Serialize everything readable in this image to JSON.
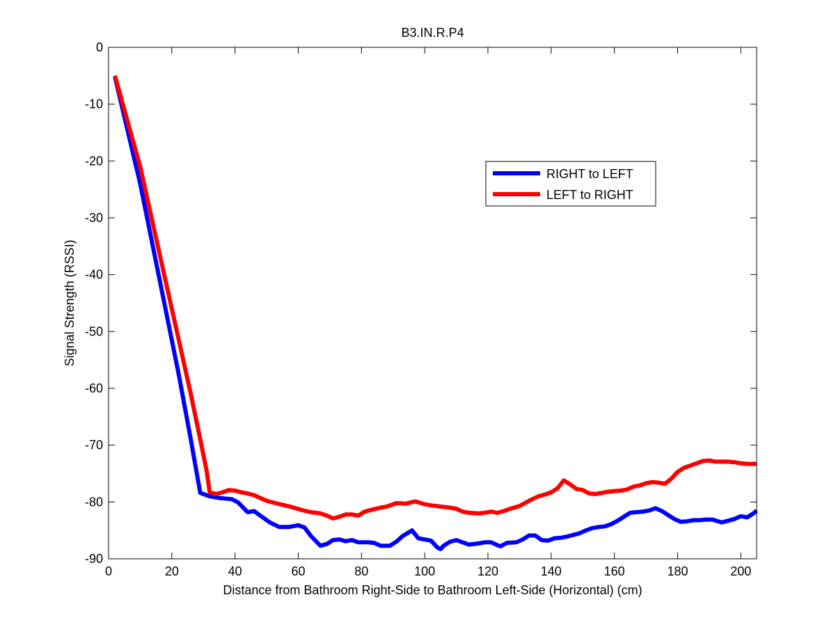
{
  "chart_data": {
    "type": "line",
    "title": "B3.IN.R.P4",
    "xlabel": "Distance from Bathroom Right-Side to Bathroom Left-Side  (Horizontal)  (cm)",
    "ylabel": "Signal Strength (RSSI)",
    "xlim": [
      0,
      205
    ],
    "ylim": [
      -90,
      0
    ],
    "xticks": [
      0,
      20,
      40,
      60,
      80,
      100,
      120,
      140,
      160,
      180,
      200
    ],
    "yticks": [
      0,
      -10,
      -20,
      -30,
      -40,
      -50,
      -60,
      -70,
      -80,
      -90
    ],
    "grid": false,
    "legend_position": "upper-right",
    "series": [
      {
        "name": "RIGHT to LEFT",
        "color": "#0000ff",
        "points": [
          [
            2,
            -5.2
          ],
          [
            10,
            -24
          ],
          [
            18,
            -46
          ],
          [
            22,
            -57
          ],
          [
            26,
            -69
          ],
          [
            29,
            -78.4
          ],
          [
            32,
            -79
          ],
          [
            35,
            -79.3
          ],
          [
            39,
            -79.5
          ],
          [
            41,
            -80.1
          ],
          [
            44,
            -81.8
          ],
          [
            46,
            -81.6
          ],
          [
            49,
            -82.8
          ],
          [
            51,
            -83.6
          ],
          [
            54,
            -84.4
          ],
          [
            57,
            -84.4
          ],
          [
            60,
            -84.1
          ],
          [
            62,
            -84.5
          ],
          [
            64,
            -86
          ],
          [
            67,
            -87.7
          ],
          [
            69,
            -87.4
          ],
          [
            71,
            -86.7
          ],
          [
            73,
            -86.6
          ],
          [
            75,
            -86.9
          ],
          [
            77,
            -86.7
          ],
          [
            79,
            -87.1
          ],
          [
            82,
            -87.1
          ],
          [
            84,
            -87.2
          ],
          [
            86,
            -87.7
          ],
          [
            89,
            -87.7
          ],
          [
            91,
            -87
          ],
          [
            93,
            -86
          ],
          [
            96,
            -85
          ],
          [
            98,
            -86.4
          ],
          [
            100,
            -86.6
          ],
          [
            102,
            -86.8
          ],
          [
            104,
            -88
          ],
          [
            105,
            -88.3
          ],
          [
            106,
            -87.7
          ],
          [
            108,
            -87
          ],
          [
            110,
            -86.7
          ],
          [
            112,
            -87.1
          ],
          [
            114,
            -87.5
          ],
          [
            117,
            -87.3
          ],
          [
            119,
            -87.1
          ],
          [
            121,
            -87.1
          ],
          [
            123,
            -87.6
          ],
          [
            124,
            -87.8
          ],
          [
            126,
            -87.2
          ],
          [
            129,
            -87.1
          ],
          [
            131,
            -86.6
          ],
          [
            133,
            -85.9
          ],
          [
            135,
            -85.9
          ],
          [
            137,
            -86.7
          ],
          [
            139,
            -86.8
          ],
          [
            141,
            -86.4
          ],
          [
            143,
            -86.3
          ],
          [
            145,
            -86.1
          ],
          [
            147,
            -85.8
          ],
          [
            149,
            -85.5
          ],
          [
            151,
            -85
          ],
          [
            153,
            -84.6
          ],
          [
            155,
            -84.4
          ],
          [
            157,
            -84.3
          ],
          [
            159,
            -83.9
          ],
          [
            161,
            -83.3
          ],
          [
            163,
            -82.6
          ],
          [
            165,
            -81.9
          ],
          [
            167,
            -81.8
          ],
          [
            169,
            -81.7
          ],
          [
            171,
            -81.5
          ],
          [
            173,
            -81.1
          ],
          [
            175,
            -81.6
          ],
          [
            177,
            -82.3
          ],
          [
            179,
            -83
          ],
          [
            181,
            -83.5
          ],
          [
            183,
            -83.4
          ],
          [
            185,
            -83.2
          ],
          [
            187,
            -83.2
          ],
          [
            189,
            -83.1
          ],
          [
            191,
            -83.1
          ],
          [
            194,
            -83.6
          ],
          [
            196,
            -83.3
          ],
          [
            198,
            -83
          ],
          [
            200,
            -82.5
          ],
          [
            202,
            -82.7
          ],
          [
            204,
            -82
          ],
          [
            205,
            -81.5
          ]
        ]
      },
      {
        "name": "LEFT to RIGHT",
        "color": "#ff0000",
        "points": [
          [
            2,
            -5
          ],
          [
            10,
            -21
          ],
          [
            18,
            -41
          ],
          [
            22,
            -51
          ],
          [
            26,
            -61
          ],
          [
            29,
            -69
          ],
          [
            31,
            -74.5
          ],
          [
            32,
            -78.3
          ],
          [
            34,
            -78.6
          ],
          [
            36,
            -78.3
          ],
          [
            38,
            -77.9
          ],
          [
            40,
            -78
          ],
          [
            42,
            -78.3
          ],
          [
            44,
            -78.5
          ],
          [
            46,
            -78.8
          ],
          [
            48,
            -79.3
          ],
          [
            50,
            -79.8
          ],
          [
            52,
            -80.1
          ],
          [
            55,
            -80.5
          ],
          [
            58,
            -80.9
          ],
          [
            61,
            -81.4
          ],
          [
            64,
            -81.8
          ],
          [
            67,
            -82
          ],
          [
            69,
            -82.4
          ],
          [
            71,
            -82.9
          ],
          [
            73,
            -82.6
          ],
          [
            75,
            -82.2
          ],
          [
            77,
            -82.2
          ],
          [
            79,
            -82.4
          ],
          [
            81,
            -81.7
          ],
          [
            83,
            -81.4
          ],
          [
            86,
            -81
          ],
          [
            88,
            -80.8
          ],
          [
            91,
            -80.2
          ],
          [
            94,
            -80.3
          ],
          [
            97,
            -79.9
          ],
          [
            100,
            -80.4
          ],
          [
            102,
            -80.6
          ],
          [
            105,
            -80.8
          ],
          [
            108,
            -81
          ],
          [
            110,
            -81.2
          ],
          [
            112,
            -81.7
          ],
          [
            114,
            -81.9
          ],
          [
            117,
            -82
          ],
          [
            119,
            -81.9
          ],
          [
            121,
            -81.7
          ],
          [
            123,
            -81.9
          ],
          [
            125,
            -81.6
          ],
          [
            127,
            -81.2
          ],
          [
            130,
            -80.7
          ],
          [
            132,
            -80.1
          ],
          [
            134,
            -79.5
          ],
          [
            136,
            -79
          ],
          [
            138,
            -78.7
          ],
          [
            140,
            -78.3
          ],
          [
            142,
            -77.6
          ],
          [
            144,
            -76.2
          ],
          [
            146,
            -76.9
          ],
          [
            148,
            -77.7
          ],
          [
            150,
            -77.9
          ],
          [
            152,
            -78.5
          ],
          [
            154,
            -78.6
          ],
          [
            156,
            -78.4
          ],
          [
            158,
            -78.2
          ],
          [
            160,
            -78.1
          ],
          [
            162,
            -78
          ],
          [
            164,
            -77.8
          ],
          [
            166,
            -77.3
          ],
          [
            168,
            -77.1
          ],
          [
            170,
            -76.7
          ],
          [
            172,
            -76.5
          ],
          [
            174,
            -76.6
          ],
          [
            176,
            -76.8
          ],
          [
            178,
            -75.9
          ],
          [
            180,
            -74.7
          ],
          [
            182,
            -74
          ],
          [
            184,
            -73.6
          ],
          [
            186,
            -73.2
          ],
          [
            188,
            -72.8
          ],
          [
            190,
            -72.7
          ],
          [
            192,
            -72.9
          ],
          [
            194,
            -72.9
          ],
          [
            196,
            -72.9
          ],
          [
            198,
            -73
          ],
          [
            200,
            -73.2
          ],
          [
            202,
            -73.3
          ],
          [
            205,
            -73.3
          ]
        ]
      }
    ]
  }
}
